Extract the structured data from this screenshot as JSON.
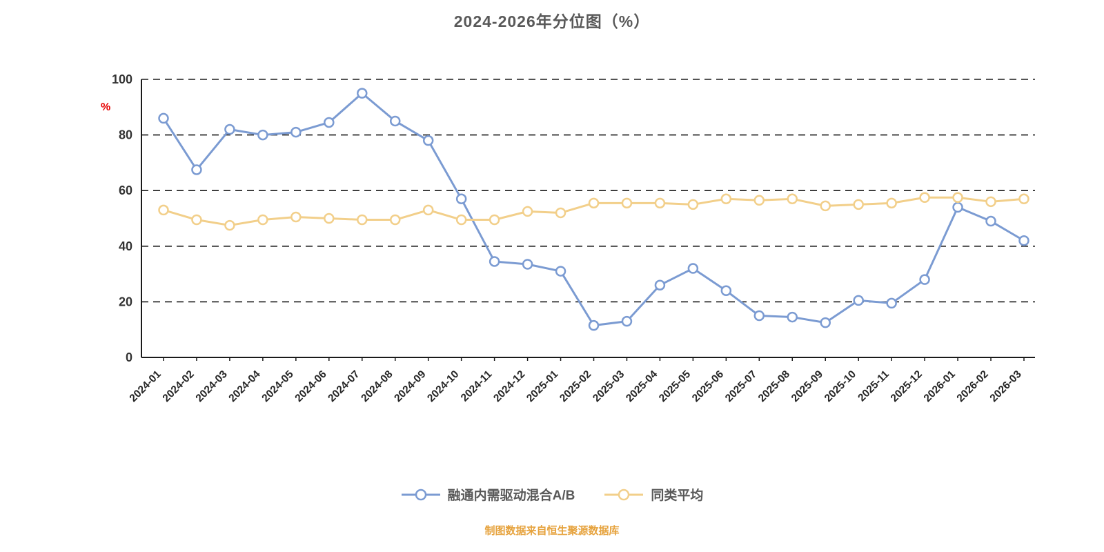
{
  "chart_data": {
    "type": "line",
    "title": "2024-2026年分位图（%）",
    "ylabel": "%",
    "caption": "制图数据来自恒生聚源数据库",
    "ylim": [
      0,
      100
    ],
    "yticks": [
      0,
      20,
      40,
      60,
      80,
      100
    ],
    "grid": "dashed-horizontal",
    "legend_position": "bottom-center",
    "categories": [
      "2024-01",
      "2024-02",
      "2024-03",
      "2024-04",
      "2024-05",
      "2024-06",
      "2024-07",
      "2024-08",
      "2024-09",
      "2024-10",
      "2024-11",
      "2024-12",
      "2025-01",
      "2025-02",
      "2025-03",
      "2025-04",
      "2025-05",
      "2025-06",
      "2025-07",
      "2025-08",
      "2025-09",
      "2025-10",
      "2025-11",
      "2025-12",
      "2026-01",
      "2026-02",
      "2026-03"
    ],
    "series": [
      {
        "name": "融通内需驱动混合A/B",
        "color": "#7b9bd2",
        "values": [
          86,
          67.5,
          82,
          80,
          81,
          84.5,
          95,
          85,
          78,
          57,
          34.5,
          33.5,
          31,
          11.5,
          13,
          26,
          32,
          24,
          15,
          14.5,
          12.5,
          20.5,
          19.5,
          28,
          54,
          49,
          42
        ]
      },
      {
        "name": "同类平均",
        "color": "#f2cf8a",
        "values": [
          53,
          49.5,
          47.5,
          49.5,
          50.5,
          50,
          49.5,
          49.5,
          53,
          49.5,
          49.5,
          52.5,
          52,
          55.5,
          55.5,
          55.5,
          55,
          57,
          56.5,
          57,
          54.5,
          55,
          55.5,
          57.5,
          57.5,
          56,
          57
        ]
      }
    ],
    "colors": {
      "title": "#595959",
      "ylabel": "#e60000",
      "caption": "#e6a23c",
      "axis": "#1a1a1a",
      "gridline": "#1a1a1a",
      "tick_label": "#333333",
      "marker_fill": "#ffffff"
    }
  }
}
